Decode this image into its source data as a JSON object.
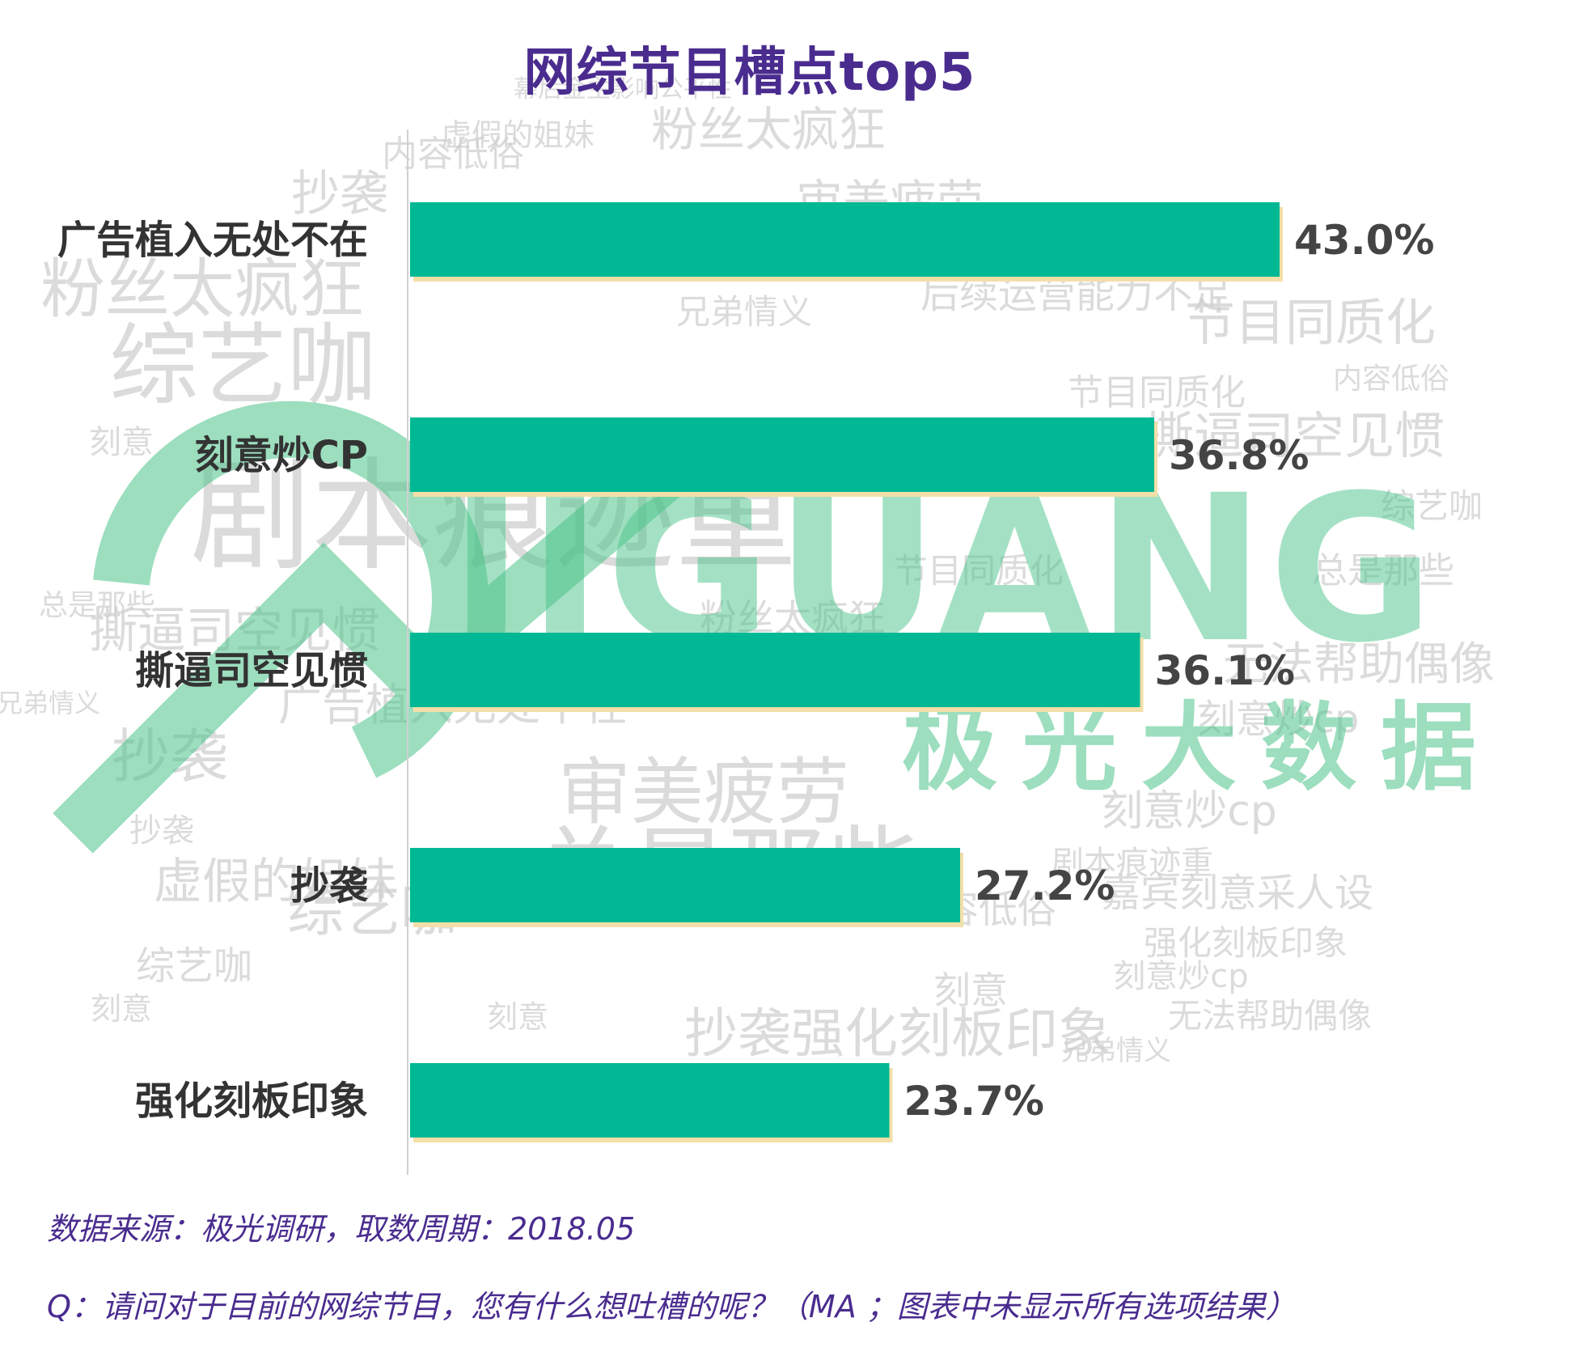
{
  "chart_data": {
    "type": "bar",
    "orientation": "horizontal",
    "title": "网综节目槽点top5",
    "categories": [
      "广告植入无处不在",
      "刻意炒CP",
      "撕逼司空见惯",
      "抄袭",
      "强化刻板印象"
    ],
    "values": [
      43.0,
      36.8,
      36.1,
      27.2,
      23.7
    ],
    "value_labels": [
      "43.0%",
      "36.8%",
      "36.1%",
      "27.2%",
      "23.7%"
    ],
    "unit": "%",
    "xlim": [
      0,
      50
    ],
    "grid": false,
    "legend": "none",
    "bar_color": "#00b894"
  },
  "footer": {
    "source": "数据来源：极光调研，取数周期：2018.05",
    "question": "Q：请问对于目前的网综节目，您有什么想吐槽的呢？（MA ；图表中未显示所有选项结果）"
  },
  "watermark": {
    "brand": "JIGUANG",
    "brand_cn": "极光大数据"
  },
  "background_words": [
    "幕后金主影响公平性",
    "粉丝太疯狂",
    "虚假的姐妹",
    "内容低俗",
    "抄袭",
    "审美疲劳",
    "粉丝太疯狂",
    "兄弟情义",
    "后续运营能力不足",
    "节目同质化",
    "综艺咖",
    "刻意",
    "撕逼司空见惯",
    "综艺咖",
    "剧本痕迹重",
    "总是那些",
    "总是那些",
    "撕逼司空见惯",
    "无法帮助偶像",
    "兄弟情义",
    "广告植入无处不在",
    "刻意炒cp",
    "抄袭",
    "审美疲劳",
    "总是那些",
    "综艺咖",
    "内容低俗",
    "剧本痕迹重",
    "嘉宾刻意采人设",
    "虚假的姐妹",
    "刻意炒cp",
    "刻意",
    "无法帮助偶像",
    "刻意",
    "抄袭强化刻板印象",
    "刻意",
    "强化刻板印象",
    "刻意炒cp",
    "抄袭",
    "兄弟情义",
    "粉丝太疯狂",
    "节目同质化",
    "剧本痕迹重",
    "撕逼司空见惯",
    "节目同质化",
    "内容低俗",
    "综艺咖"
  ],
  "colors": {
    "title": "#4a2c8f",
    "footer": "#4a2c8f",
    "bar": "#00b894",
    "bar_shadow": "#f3dfa8",
    "category_text": "#333333",
    "value_text": "#444444",
    "axis": "#d0d0d0",
    "wordcloud": "#cfcfcf",
    "watermark": "#4cc48a"
  }
}
